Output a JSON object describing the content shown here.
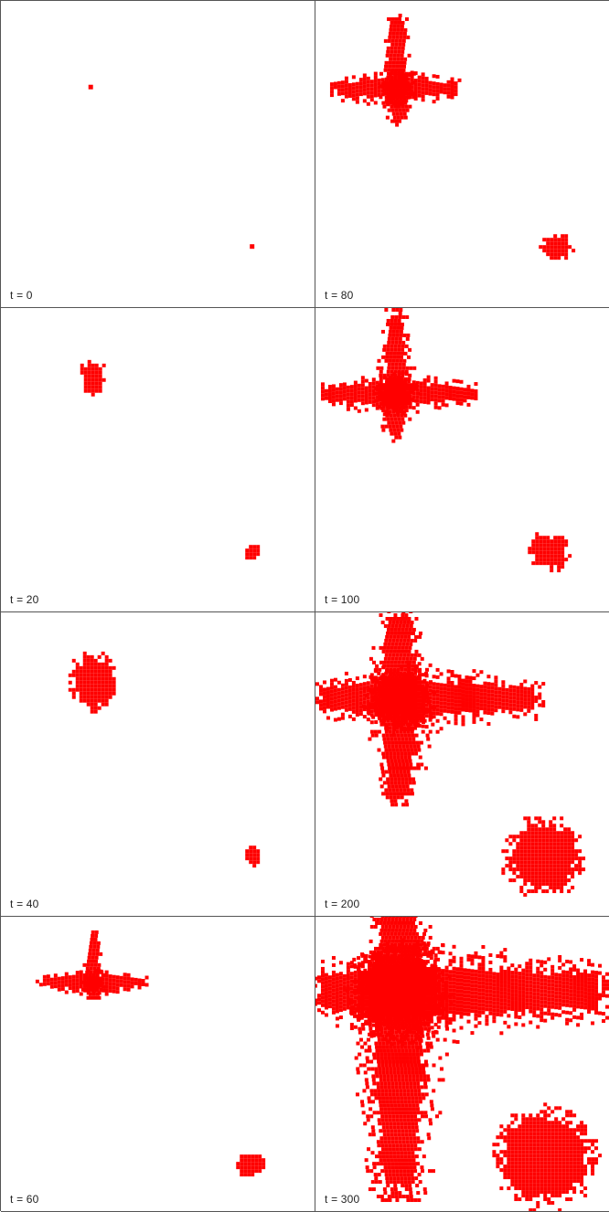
{
  "colors": {
    "cell": "#ff0000",
    "background": "#ffffff",
    "border": "#555555"
  },
  "panels": [
    {
      "label": "t = 0"
    },
    {
      "label": "t = 80"
    },
    {
      "label": "t = 20"
    },
    {
      "label": "t = 100"
    },
    {
      "label": "t = 40"
    },
    {
      "label": "t = 200"
    },
    {
      "label": "t = 60"
    },
    {
      "label": "t = 300"
    }
  ]
}
